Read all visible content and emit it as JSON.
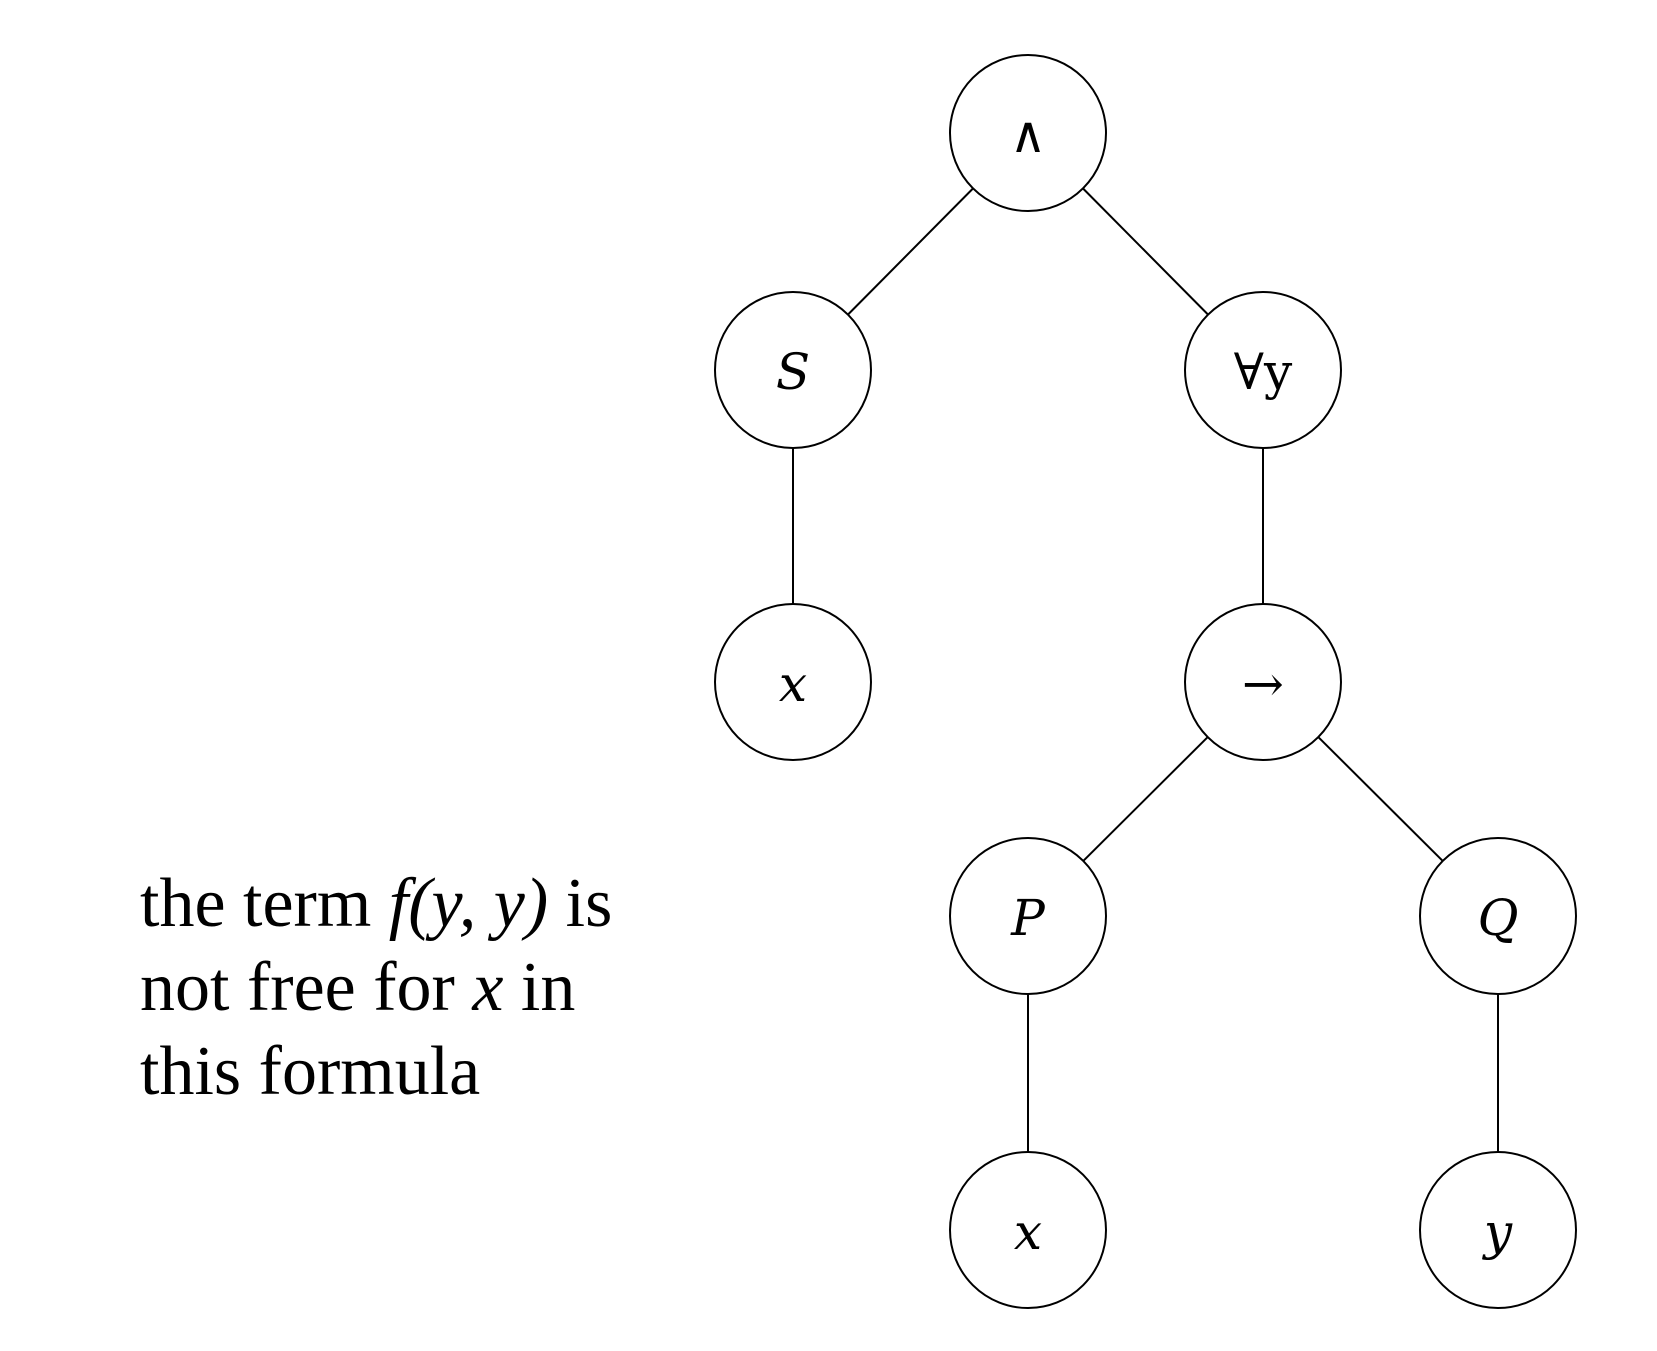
{
  "tree": {
    "nodes": [
      {
        "id": "and",
        "label": "∧",
        "italic": false
      },
      {
        "id": "S",
        "label": "S",
        "italic": true
      },
      {
        "id": "forall_y",
        "label": "∀y",
        "italic": false
      },
      {
        "id": "x1",
        "label": "x",
        "italic": true
      },
      {
        "id": "implies",
        "label": "→",
        "italic": false
      },
      {
        "id": "P",
        "label": "P",
        "italic": true
      },
      {
        "id": "Q",
        "label": "Q",
        "italic": true
      },
      {
        "id": "x2",
        "label": "x",
        "italic": true
      },
      {
        "id": "y",
        "label": "y",
        "italic": true
      }
    ],
    "edges": [
      [
        "and",
        "S"
      ],
      [
        "and",
        "forall_y"
      ],
      [
        "S",
        "x1"
      ],
      [
        "forall_y",
        "implies"
      ],
      [
        "implies",
        "P"
      ],
      [
        "implies",
        "Q"
      ],
      [
        "P",
        "x2"
      ],
      [
        "Q",
        "y"
      ]
    ]
  },
  "caption": {
    "line1_a": "the term ",
    "line1_math": "f(y, y)",
    "line1_b": " is",
    "line2_a": "not free for ",
    "line2_math": "x",
    "line2_b": " in",
    "line3": "this formula"
  }
}
